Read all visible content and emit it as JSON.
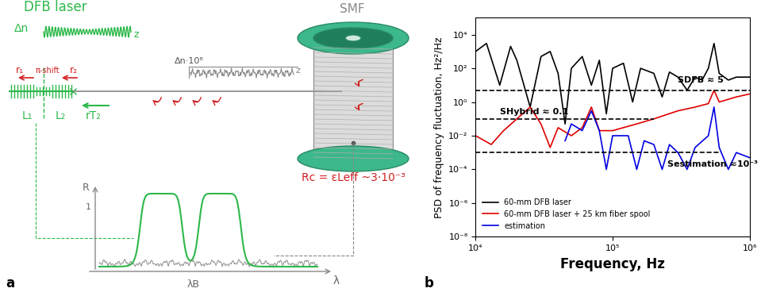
{
  "panel_labels": [
    "a",
    "b"
  ],
  "diagram": {
    "dfb": {
      "title": "DFB laser",
      "index_label": "Δn",
      "axis_label": "z",
      "r1": "r₁",
      "pi_shift": "π-shift",
      "r2": "r₂",
      "L1": "L₁",
      "L2": "L₂",
      "rT2": "rT₂"
    },
    "fiber": {
      "title": "SMF",
      "index_label": "Δn·10⁸",
      "axis_label": "z",
      "rc": "Rc = εLeff ~3·10⁻³"
    },
    "spectrum": {
      "y_label": "R",
      "y_tick": "1",
      "x_label": "λ",
      "bragg": "λB"
    }
  },
  "chart_data": {
    "type": "line",
    "log": true,
    "x_label": "Frequency, Hz",
    "y_label": "PSD of frequency fluctuation, Hz²/Hz",
    "xlim": [
      10000,
      1000000
    ],
    "ylim": [
      1e-08,
      100000
    ],
    "xticks": [
      {
        "value": 10000,
        "label": "10⁴"
      },
      {
        "value": 100000,
        "label": "10⁵"
      },
      {
        "value": 1000000,
        "label": "10⁶"
      }
    ],
    "yticks": [
      {
        "value": 1e-08,
        "label": "10⁻⁸"
      },
      {
        "value": 1e-06,
        "label": "10⁻⁶"
      },
      {
        "value": 0.0001,
        "label": "10⁻⁴"
      },
      {
        "value": 0.01,
        "label": "10⁻²"
      },
      {
        "value": 1,
        "label": "10⁰"
      },
      {
        "value": 100,
        "label": "10²"
      },
      {
        "value": 10000,
        "label": "10⁴"
      }
    ],
    "legend": "lower left",
    "series": [
      {
        "name": "60-mm DFB laser",
        "color": "#000000",
        "x": [
          10000,
          12000,
          15000,
          18000,
          20000,
          25000,
          30000,
          35000,
          40000,
          45000,
          50000,
          60000,
          70000,
          80000,
          90000,
          100000,
          120000,
          140000,
          160000,
          200000,
          230000,
          260000,
          300000,
          350000,
          400000,
          450000,
          500000,
          550000,
          600000,
          700000,
          800000,
          1000000
        ],
        "values": [
          1000,
          3000,
          10,
          2000,
          300,
          0.5,
          500,
          1000,
          50,
          0.05,
          100,
          500,
          10,
          300,
          0.2,
          100,
          200,
          1,
          100,
          50,
          2,
          60,
          30,
          5,
          30,
          20,
          100,
          3000,
          50,
          20,
          30,
          30
        ]
      },
      {
        "name": "60-mm DFB laser + 25 km fiber spool",
        "color": "#e00000",
        "x": [
          10000,
          13000,
          16000,
          20000,
          25000,
          30000,
          35000,
          40000,
          50000,
          60000,
          70000,
          80000,
          100000,
          150000,
          200000,
          300000,
          400000,
          500000,
          550000,
          600000,
          800000,
          1000000
        ],
        "values": [
          0.01,
          0.003,
          0.02,
          0.1,
          0.5,
          0.05,
          0.002,
          0.03,
          0.01,
          0.03,
          0.5,
          0.02,
          0.02,
          0.05,
          0.1,
          0.3,
          0.5,
          0.8,
          5,
          1,
          2,
          3
        ]
      },
      {
        "name": "estimation",
        "color": "#0000e0",
        "x": [
          45000,
          50000,
          60000,
          70000,
          80000,
          90000,
          100000,
          130000,
          150000,
          170000,
          200000,
          230000,
          260000,
          300000,
          350000,
          400000,
          500000,
          550000,
          600000,
          700000,
          800000,
          1000000
        ],
        "values": [
          0.005,
          0.05,
          0.02,
          0.3,
          0.02,
          0.0001,
          0.01,
          0.01,
          0.0001,
          0.005,
          0.003,
          0.0001,
          0.003,
          0.001,
          0.0001,
          0.002,
          0.01,
          0.5,
          0.002,
          0.0001,
          0.001,
          0.0005
        ]
      }
    ],
    "reference_lines": [
      {
        "value": 5,
        "label": "SDFB ≈ 5",
        "x": [
          10000,
          1000000
        ]
      },
      {
        "value": 0.1,
        "label": "SHybrid ≈ 0.1",
        "x": [
          10000,
          200000
        ]
      },
      {
        "value": 0.001,
        "label": "Sestimation ≈10⁻³",
        "x": [
          10000,
          600000
        ]
      }
    ]
  }
}
